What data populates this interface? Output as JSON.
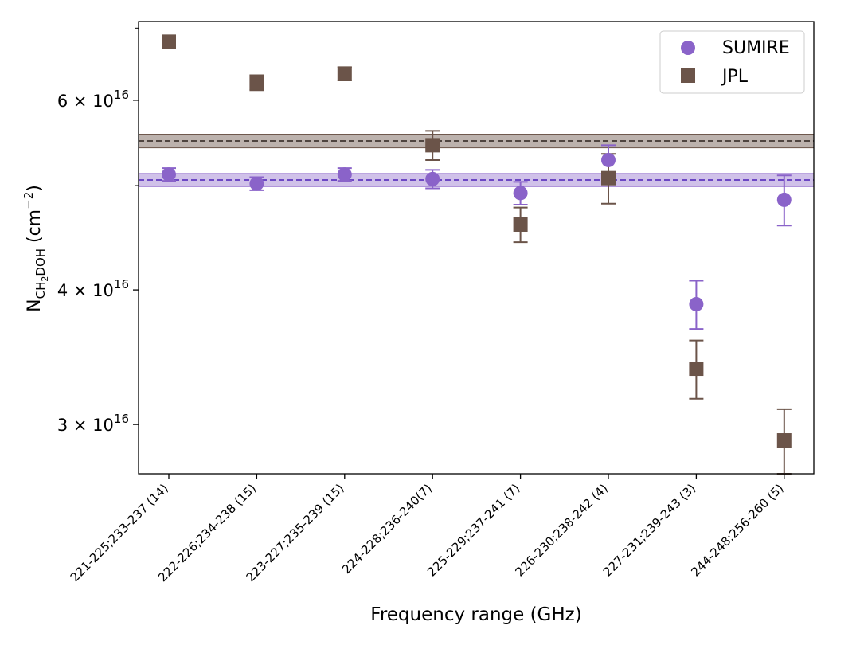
{
  "chart_data": {
    "type": "scatter",
    "title": "",
    "xlabel": "Frequency range (GHz)",
    "ylabel": {
      "base": "N",
      "sub": "CH",
      "sub2": "2",
      "sub3": "DOH",
      "unit_open": " (cm",
      "unit_sup": "−2",
      "unit_close": ")"
    },
    "yscale": "log",
    "ylim": [
      2.7e+16,
      7.1e+16
    ],
    "yticks": [
      {
        "value": 3e+16,
        "mantissa": "3",
        "times": " × ",
        "base": "10",
        "exp": "16"
      },
      {
        "value": 4e+16,
        "mantissa": "4",
        "times": " × ",
        "base": "10",
        "exp": "16"
      },
      {
        "value": 6e+16,
        "mantissa": "6",
        "times": " × ",
        "base": "10",
        "exp": "16"
      }
    ],
    "categories": [
      "221-225;233-237 (14)",
      "222-226;234-238 (15)",
      "223-227;235-239 (15)",
      "224-228;236-240(7)",
      "225-229;237-241 (7)",
      "226-230;238-242 (4)",
      "227-231;239-243 (3)",
      "244-248;256-260 (5)"
    ],
    "series": [
      {
        "name": "SUMIRE",
        "marker": "circle",
        "color": "#8a63c9",
        "values": [
          5.12e+16,
          5.02e+16,
          5.12e+16,
          5.07e+16,
          4.92e+16,
          5.28e+16,
          3.88e+16,
          4.85e+16
        ],
        "err": [
          700000000000000.0,
          700000000000000.0,
          700000000000000.0,
          1000000000000000.0,
          1200000000000000.0,
          1700000000000000.0,
          2000000000000000.0,
          2600000000000000.0
        ],
        "mean": 5.06e+16,
        "mean_band": [
          4.99e+16,
          5.13e+16
        ]
      },
      {
        "name": "JPL",
        "marker": "square",
        "color": "#6b5449",
        "values": [
          6.8e+16,
          6.23e+16,
          6.35e+16,
          5.45e+16,
          4.6e+16,
          5.08e+16,
          3.38e+16,
          2.9e+16
        ],
        "err": [
          600000000000000.0,
          1000000000000000.0,
          900000000000000.0,
          1700000000000000.0,
          1700000000000000.0,
          2700000000000000.0,
          2100000000000000.0,
          2000000000000000.0
        ],
        "mean": 5.5e+16,
        "mean_band": [
          5.42e+16,
          5.58e+16
        ]
      }
    ],
    "legend_location": "top-right"
  }
}
